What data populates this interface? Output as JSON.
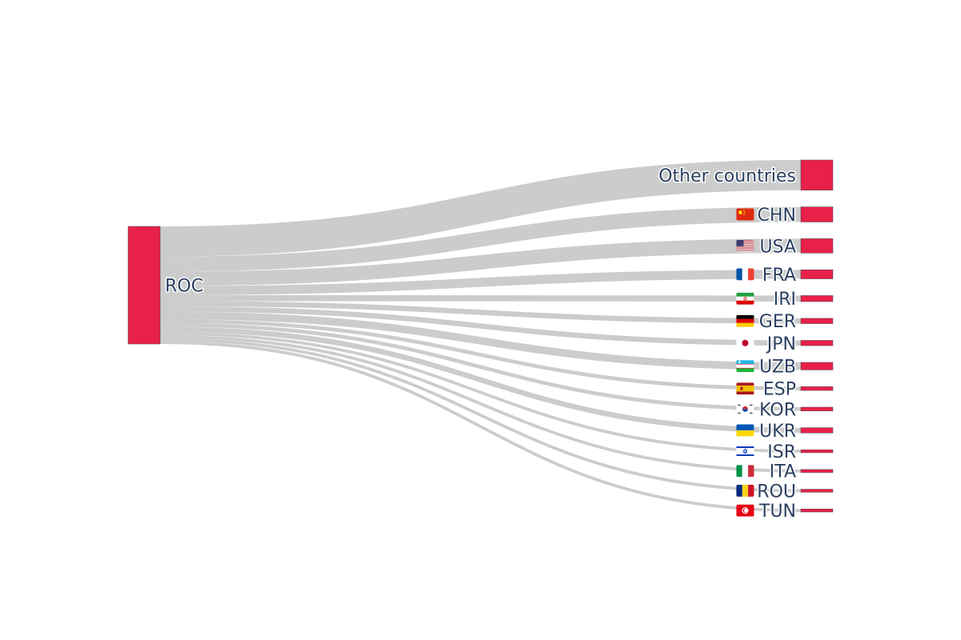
{
  "chart_data": {
    "type": "sankey",
    "title": "",
    "source": {
      "label": "ROC"
    },
    "targets": [
      {
        "label": "Other countries",
        "flag": "",
        "value": 40
      },
      {
        "label": "CHN",
        "flag": "china",
        "value": 20
      },
      {
        "label": "USA",
        "flag": "usa",
        "value": 19
      },
      {
        "label": "FRA",
        "flag": "france",
        "value": 12
      },
      {
        "label": "IRI",
        "flag": "iran",
        "value": 8
      },
      {
        "label": "GER",
        "flag": "germany",
        "value": 7
      },
      {
        "label": "JPN",
        "flag": "japan",
        "value": 7
      },
      {
        "label": "UZB",
        "flag": "uzbekistan",
        "value": 10
      },
      {
        "label": "ESP",
        "flag": "spain",
        "value": 5
      },
      {
        "label": "KOR",
        "flag": "korea",
        "value": 5
      },
      {
        "label": "UKR",
        "flag": "ukraine",
        "value": 7
      },
      {
        "label": "ISR",
        "flag": "israel",
        "value": 4
      },
      {
        "label": "ITA",
        "flag": "italy",
        "value": 4
      },
      {
        "label": "ROU",
        "flag": "romania",
        "value": 4
      },
      {
        "label": "TUN",
        "flag": "tunisia",
        "value": 4
      }
    ],
    "colors": {
      "node": "#e8214a",
      "link": "#cccccc",
      "label": "#2a3f5f"
    }
  }
}
